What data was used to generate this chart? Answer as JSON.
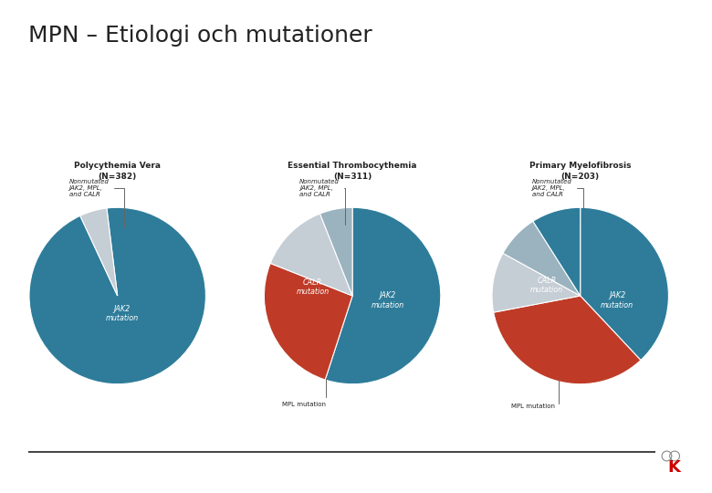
{
  "title": "MPN – Etiologi och mutationer",
  "title_fontsize": 18,
  "background_color": "#ffffff",
  "charts": [
    {
      "title": "Polycythemia Vera\n(N=382)",
      "slices": [
        95,
        5
      ],
      "colors": [
        "#2e7c9a",
        "#c5cdd5"
      ],
      "startangle": 97,
      "counterclock": false
    },
    {
      "title": "Essential Thrombocythemia\n(N=311)",
      "slices": [
        55,
        26,
        13,
        6
      ],
      "colors": [
        "#2e7c9a",
        "#bf3b27",
        "#c5cdd5",
        "#9ab3bf"
      ],
      "startangle": 90,
      "counterclock": false
    },
    {
      "title": "Primary Myelofibrosis\n(N=203)",
      "slices": [
        38,
        34,
        11,
        8,
        9
      ],
      "colors": [
        "#2e7c9a",
        "#bf3b27",
        "#c5cdd5",
        "#9ab3bf",
        "#2e7c9a"
      ],
      "startangle": 90,
      "counterclock": false
    }
  ],
  "teal": "#2e7c9a",
  "red": "#bf3b27",
  "gray": "#c5cdd5",
  "blue_gray": "#9ab3bf",
  "text_dark": "#222222",
  "text_white": "#ffffff"
}
